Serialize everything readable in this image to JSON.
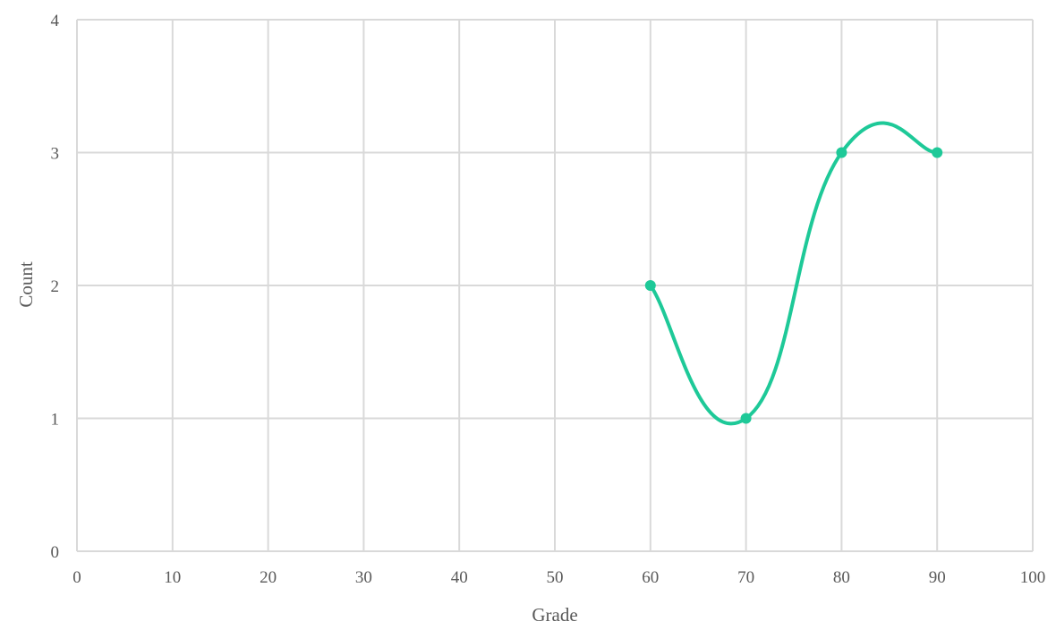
{
  "chart_data": {
    "type": "scatter",
    "title": "",
    "xlabel": "Grade",
    "ylabel": "Count",
    "xlim": [
      0,
      100
    ],
    "ylim": [
      0,
      4
    ],
    "x_ticks": [
      0,
      10,
      20,
      30,
      40,
      50,
      60,
      70,
      80,
      90,
      100
    ],
    "y_ticks": [
      0,
      1,
      2,
      3,
      4
    ],
    "grid": true,
    "smooth_line": true,
    "legend": "none",
    "series": [
      {
        "color": "#1ec998",
        "points": [
          {
            "x": 60,
            "y": 2
          },
          {
            "x": 70,
            "y": 1
          },
          {
            "x": 80,
            "y": 3
          },
          {
            "x": 90,
            "y": 3
          }
        ]
      }
    ]
  }
}
